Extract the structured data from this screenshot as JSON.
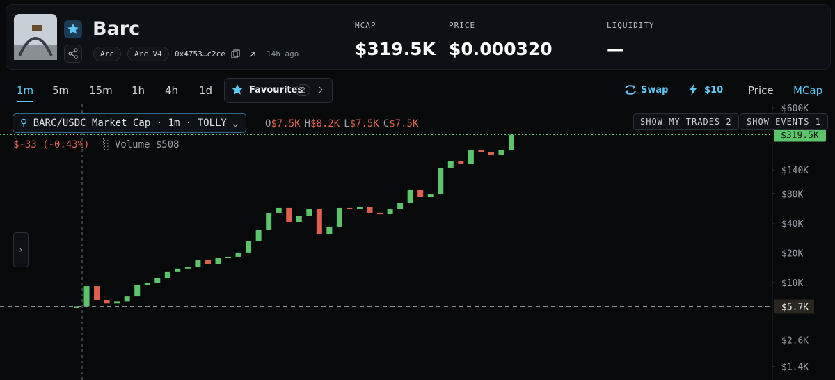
{
  "header": {
    "title": "Barc",
    "tags": [
      "Arc",
      "Arc V4"
    ],
    "address": "0x4753…c2ce",
    "age": "14h ago",
    "stats": [
      {
        "label": "MCAP",
        "value": "$319.5K"
      },
      {
        "label": "PRICE",
        "value": "$0.000320"
      },
      {
        "label": "LIQUIDITY",
        "value": "—"
      }
    ]
  },
  "toolbar": {
    "intervals": [
      "1m",
      "5m",
      "15m",
      "1h",
      "4h",
      "1d"
    ],
    "favourites": {
      "label": "Favourites",
      "count": 2
    },
    "swap": "Swap",
    "amount": "$10",
    "modes": [
      "Price",
      "MCap"
    ]
  },
  "legend": {
    "symbol": "BARC/USDC Market Cap · 1m · TOLLY",
    "ohlc": [
      {
        "key": "O",
        "value": "$7.5K"
      },
      {
        "key": "H",
        "value": "$8.2K"
      },
      {
        "key": "L",
        "value": "$7.5K"
      },
      {
        "key": "C",
        "value": "$7.5K"
      }
    ],
    "change": "$-33 (-0.43%)",
    "volume": "Volume $508"
  },
  "buttons": [
    {
      "label": "SHOW MY TRADES",
      "count": 2
    },
    {
      "label": "SHOW EVENTS",
      "count": 1
    }
  ],
  "chart_data": {
    "type": "candlestick",
    "open": [
      5600,
      5700,
      9200,
      6650,
      6100,
      6400,
      7200,
      9500,
      10000,
      11200,
      12800,
      13900,
      14500,
      17100,
      15500,
      17700,
      18300,
      20200,
      26600,
      34000,
      51100,
      57300,
      41300,
      47100,
      55400,
      31300,
      36900,
      57300,
      55400,
      58200,
      51100,
      49400,
      55400,
      65200,
      87500,
      74300,
      79300,
      147400,
      173600,
      160000,
      221600,
      211100,
      197800,
      221600
    ],
    "close": [
      5700,
      9200,
      6650,
      6100,
      6400,
      7200,
      9500,
      10000,
      11200,
      12800,
      13900,
      14500,
      17100,
      15500,
      17700,
      18300,
      20200,
      26600,
      34000,
      51100,
      57300,
      41300,
      47100,
      55400,
      31300,
      36900,
      57300,
      55400,
      58200,
      51100,
      49400,
      55400,
      65200,
      87500,
      74300,
      79300,
      147400,
      173600,
      160000,
      221600,
      211100,
      197800,
      221600,
      319500
    ],
    "ylim": [
      1200,
      650000
    ],
    "log_scale": true,
    "yticks": [
      {
        "value": 600000,
        "label": "$600K"
      },
      {
        "value": 140000,
        "label": "$140K"
      },
      {
        "value": 80000,
        "label": "$80K"
      },
      {
        "value": 40000,
        "label": "$40K"
      },
      {
        "value": 20000,
        "label": "$20K"
      },
      {
        "value": 10000,
        "label": "$10K"
      },
      {
        "value": 2600,
        "label": "$2.6K"
      },
      {
        "value": 1400,
        "label": "$1.4K"
      }
    ],
    "last_price": {
      "value": 319500,
      "label": "$319.5K"
    },
    "price_line": {
      "value": 5700,
      "label": "$5.7K"
    },
    "up_color": "#5cc46a",
    "down_color": "#e0604f"
  }
}
